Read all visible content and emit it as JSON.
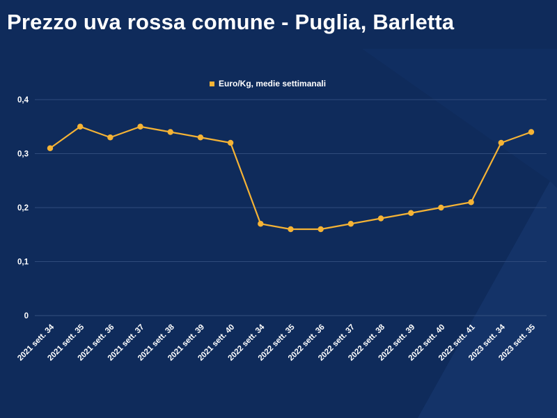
{
  "header": {
    "title": "Prezzo uva rossa comune - Puglia, Barletta"
  },
  "colors": {
    "background": "#0f2b5b",
    "series": "#f5b335",
    "grid": "#2f4b7c",
    "text": "#ffffff"
  },
  "chart_data": {
    "type": "line",
    "title": "Prezzo uva rossa comune - Puglia, Barletta",
    "xlabel": "",
    "ylabel": "",
    "categories": [
      "2021 sett. 34",
      "2021 sett. 35",
      "2021 sett. 36",
      "2021 sett. 37",
      "2021 sett. 38",
      "2021 sett. 39",
      "2021 sett. 40",
      "2022 sett. 34",
      "2022 sett. 35",
      "2022 sett. 36",
      "2022 sett. 37",
      "2022 sett. 38",
      "2022 sett. 39",
      "2022 sett. 40",
      "2022 sett. 41",
      "2023 sett. 34",
      "2023 sett. 35"
    ],
    "series": [
      {
        "name": "Euro/Kg, medie settimanali",
        "values": [
          0.31,
          0.35,
          0.33,
          0.35,
          0.34,
          0.33,
          0.32,
          0.17,
          0.16,
          0.16,
          0.17,
          0.18,
          0.19,
          0.2,
          0.21,
          0.32,
          0.34
        ]
      }
    ],
    "ylim": [
      0,
      0.4
    ],
    "yticks": [
      0,
      0.1,
      0.2,
      0.3,
      0.4
    ],
    "ytick_labels": [
      "0",
      "0,1",
      "0,2",
      "0,3",
      "0,4"
    ],
    "grid": true,
    "legend_position": "top-center"
  }
}
